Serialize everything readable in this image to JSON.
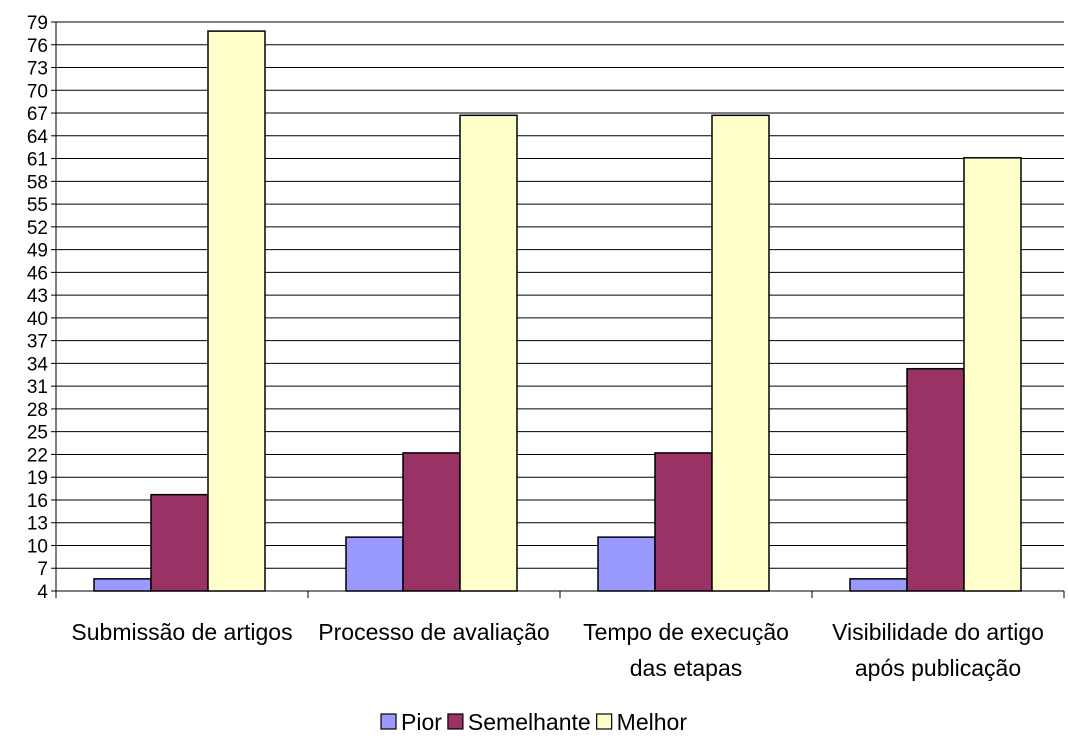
{
  "chart_data": {
    "type": "bar",
    "title": "",
    "xlabel": "",
    "ylabel": "",
    "categories": [
      [
        "Submissão de artigos"
      ],
      [
        "Processo de avaliação"
      ],
      [
        "Tempo de execução",
        "das etapas"
      ],
      [
        "Visibilidade do artigo",
        "após publicação"
      ]
    ],
    "series": [
      {
        "name": "Pior",
        "color": "#9999ff",
        "values": [
          5.6,
          11.1,
          11.1,
          5.6
        ]
      },
      {
        "name": "Semelhante",
        "color": "#993366",
        "values": [
          16.7,
          22.2,
          22.2,
          33.3
        ]
      },
      {
        "name": "Melhor",
        "color": "#ffffcc",
        "values": [
          77.8,
          66.7,
          66.7,
          61.1
        ]
      }
    ],
    "ylim": [
      4,
      79
    ],
    "yticks": [
      4,
      7,
      10,
      13,
      16,
      19,
      22,
      25,
      28,
      31,
      34,
      37,
      40,
      43,
      46,
      49,
      52,
      55,
      58,
      61,
      64,
      67,
      70,
      73,
      76,
      79
    ],
    "grid": true,
    "legend": "bottom"
  }
}
